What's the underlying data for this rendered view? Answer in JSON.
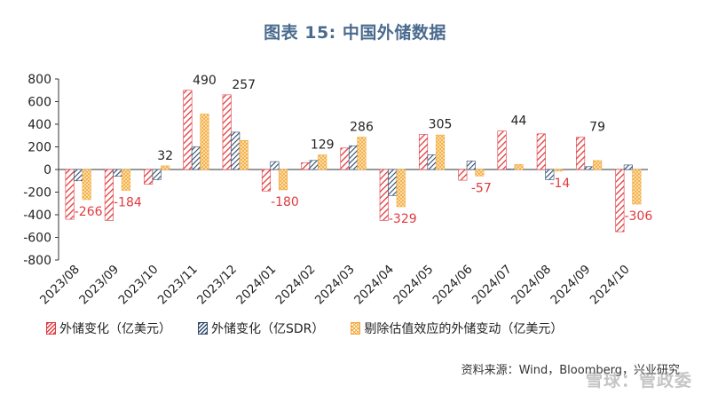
{
  "title": "图表 15: 中国外储数据",
  "source": "资料来源：Wind，Bloomberg，兴业研究",
  "watermark": "雪球：管政委",
  "colors": {
    "red": "#e03a3e",
    "navy": "#2f4a6b",
    "gold": "#f2a93b",
    "label_red": "#e03a3e"
  },
  "chart_data": {
    "type": "bar",
    "title": "图表 15: 中国外储数据",
    "categories": [
      "2023/08",
      "2023/09",
      "2023/10",
      "2023/11",
      "2023/12",
      "2024/01",
      "2024/02",
      "2024/03",
      "2024/04",
      "2024/05",
      "2024/06",
      "2024/07",
      "2024/08",
      "2024/09",
      "2024/10"
    ],
    "ylim": [
      -800,
      800
    ],
    "yticks": [
      800,
      600,
      400,
      200,
      0,
      -200,
      -400,
      -600,
      -800
    ],
    "grid": false,
    "legend_position": "bottom",
    "series": [
      {
        "name": "外储变化（亿美元）",
        "values": [
          -440,
          -450,
          -130,
          700,
          660,
          -190,
          60,
          190,
          -450,
          310,
          -95,
          340,
          315,
          285,
          -550
        ]
      },
      {
        "name": "外储变化（亿SDR）",
        "values": [
          -100,
          -60,
          -90,
          200,
          330,
          70,
          80,
          210,
          -230,
          130,
          75,
          5,
          -90,
          25,
          40
        ]
      },
      {
        "name": "剔除估值效应的外储变动（亿美元）",
        "values": [
          -266,
          -184,
          32,
          490,
          257,
          -180,
          129,
          286,
          -329,
          305,
          -57,
          44,
          -14,
          79,
          -306
        ]
      }
    ],
    "data_labels": [
      "-266",
      "-184",
      "32",
      "490",
      "257",
      "-180",
      "129",
      "286",
      "-329",
      "305",
      "-57",
      "44",
      "-14",
      "79",
      "-306"
    ]
  }
}
